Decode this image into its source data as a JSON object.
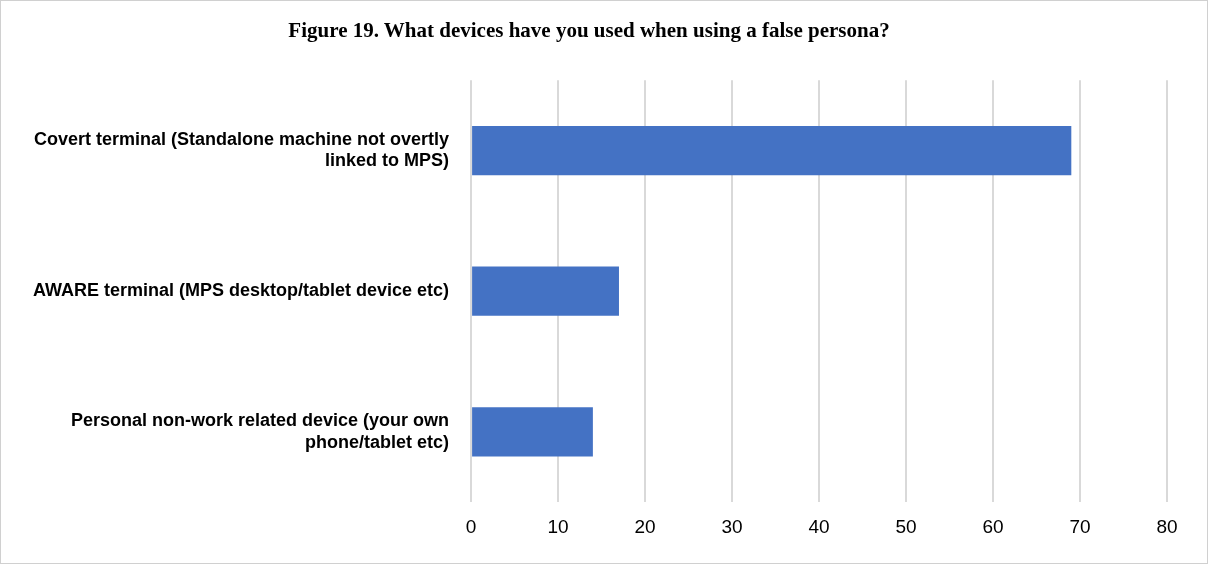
{
  "chart_data": {
    "type": "bar",
    "orientation": "horizontal",
    "title": "Figure 19. What devices have you used when using a false persona?",
    "categories": [
      "Covert terminal (Standalone machine not overtly linked to MPS)",
      "AWARE terminal (MPS desktop/tablet device etc)",
      "Personal non-work related device (your own phone/tablet etc)"
    ],
    "values": [
      69,
      17,
      14
    ],
    "color": "#4472c4",
    "xlim": [
      0,
      80
    ],
    "xticks": [
      0,
      10,
      20,
      30,
      40,
      50,
      60,
      70,
      80
    ],
    "grid": "x",
    "legend": false
  }
}
